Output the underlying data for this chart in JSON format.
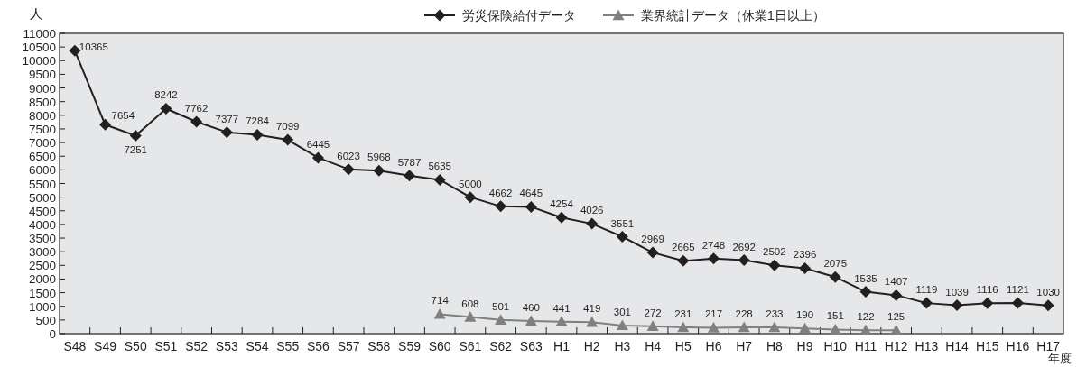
{
  "chart_data": {
    "type": "line",
    "ylabel": "人",
    "xlabel": "年度",
    "categories": [
      "S48",
      "S49",
      "S50",
      "S51",
      "S52",
      "S53",
      "S54",
      "S55",
      "S56",
      "S57",
      "S58",
      "S59",
      "S60",
      "S61",
      "S62",
      "S63",
      "H1",
      "H2",
      "H3",
      "H4",
      "H5",
      "H6",
      "H7",
      "H8",
      "H9",
      "H10",
      "H11",
      "H12",
      "H13",
      "H14",
      "H15",
      "H16",
      "H17"
    ],
    "series": [
      {
        "name": "労災保険給付データ",
        "color": "#231f20",
        "marker": "diamond",
        "values": [
          10365,
          7654,
          7251,
          8242,
          7762,
          7377,
          7284,
          7099,
          6445,
          6023,
          5968,
          5787,
          5635,
          5000,
          4662,
          4645,
          4254,
          4026,
          3551,
          2969,
          2665,
          2748,
          2692,
          2502,
          2396,
          2075,
          1535,
          1407,
          1119,
          1039,
          1116,
          1121,
          1030
        ]
      },
      {
        "name": "業界統計データ（休業1日以上）",
        "color": "#808080",
        "marker": "triangle",
        "values": [
          null,
          null,
          null,
          null,
          null,
          null,
          null,
          null,
          null,
          null,
          null,
          null,
          714,
          608,
          501,
          460,
          441,
          419,
          301,
          272,
          231,
          217,
          228,
          233,
          190,
          151,
          122,
          125,
          null,
          null,
          null,
          null,
          null
        ]
      }
    ],
    "ylim": [
      0,
      11000
    ],
    "yticks": [
      0,
      500,
      1000,
      1500,
      2000,
      2500,
      3000,
      3500,
      4000,
      4500,
      5000,
      5500,
      6000,
      6500,
      7000,
      7500,
      8000,
      8500,
      9000,
      9500,
      10000,
      10500,
      11000
    ],
    "data_labels": true,
    "legend": "top",
    "grid": false
  }
}
